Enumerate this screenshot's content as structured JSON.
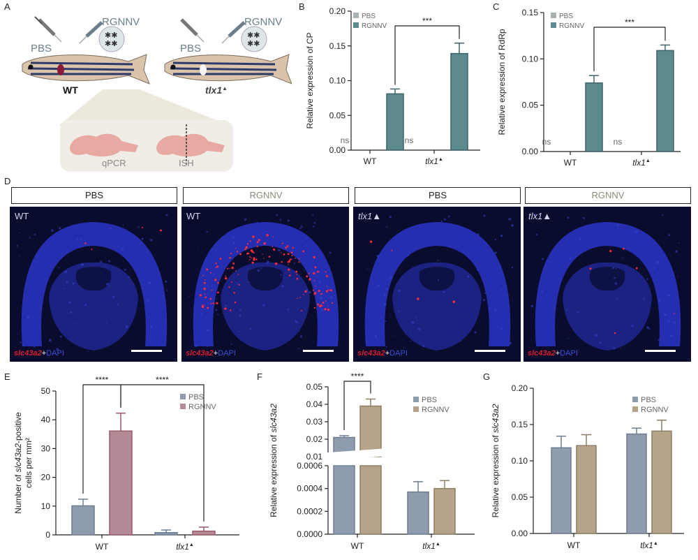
{
  "panel_labels": [
    "A",
    "B",
    "C",
    "D",
    "E",
    "F",
    "G"
  ],
  "schematic": {
    "left": {
      "pbs": "PBS",
      "rgnnv": "RGNNV",
      "genotype": "WT"
    },
    "right": {
      "pbs": "PBS",
      "rgnnv": "RGNNV",
      "genotype": "tlx1",
      "genotype_sup": "▲"
    },
    "assays": [
      "qPCR",
      "ISH"
    ]
  },
  "micrographs": {
    "titles": [
      "PBS",
      "RGNNV",
      "PBS",
      "RGNNV"
    ],
    "genotypes": [
      "WT",
      "WT",
      "tlx1▲",
      "tlx1▲"
    ],
    "stain": {
      "gene": "slc43a2",
      "plus": "+",
      "dapi": "DAPI"
    },
    "colors": {
      "nucleus": "#2a35c8",
      "background": "#0a0c2e",
      "signal": "#ff2a3a"
    }
  },
  "colors": {
    "teal": "#5d8a8e",
    "teal_light": "#a9b3b4",
    "slate": "#8d9bad",
    "mauve": "#b48a97",
    "tan": "#b5a48a",
    "grey_blue": "#8f9cae"
  },
  "chart_data": [
    {
      "panel": "B",
      "type": "bar",
      "categories": [
        "WT",
        "tlx1▲"
      ],
      "series": [
        {
          "name": "PBS",
          "values": [
            0,
            0
          ],
          "errors": [
            0,
            0
          ],
          "labels": [
            "ns",
            "ns"
          ]
        },
        {
          "name": "RGNNV",
          "values": [
            0.081,
            0.139
          ],
          "errors": [
            0.007,
            0.015
          ]
        }
      ],
      "ylabel": "Relative expression of CP",
      "ylim": [
        0,
        0.2
      ],
      "yticks": [
        "0.00",
        "0.05",
        "0.10",
        "0.15",
        "0.20"
      ],
      "significance": [
        {
          "text": "***",
          "between": [
            "WT RGNNV",
            "tlx1▲ RGNNV"
          ]
        }
      ],
      "legend": "top-left"
    },
    {
      "panel": "C",
      "type": "bar",
      "categories": [
        "WT",
        "tlx1▲"
      ],
      "series": [
        {
          "name": "PBS",
          "values": [
            0,
            0
          ],
          "errors": [
            0,
            0
          ],
          "labels": [
            "ns",
            "ns"
          ]
        },
        {
          "name": "RGNNV",
          "values": [
            0.074,
            0.109
          ],
          "errors": [
            0.008,
            0.006
          ]
        }
      ],
      "ylabel": "Relative expression of RdRp",
      "ylim": [
        0,
        0.15
      ],
      "yticks": [
        "0.00",
        "0.05",
        "0.10",
        "0.15"
      ],
      "significance": [
        {
          "text": "***",
          "between": [
            "WT RGNNV",
            "tlx1▲ RGNNV"
          ]
        }
      ],
      "legend": "top-left"
    },
    {
      "panel": "E",
      "type": "bar",
      "categories": [
        "WT",
        "tlx1▲"
      ],
      "series": [
        {
          "name": "PBS",
          "values": [
            10.1,
            0.8
          ],
          "errors": [
            2.3,
            0.9
          ]
        },
        {
          "name": "RGNNV",
          "values": [
            36.1,
            1.3
          ],
          "errors": [
            6.2,
            1.4
          ]
        }
      ],
      "ylabel": "Number of slc43a2-positive cells per mm²",
      "ylim": [
        0,
        50
      ],
      "yticks": [
        "0",
        "10",
        "20",
        "30",
        "40",
        "50"
      ],
      "significance": [
        {
          "text": "****",
          "between": [
            "WT PBS",
            "WT RGNNV"
          ]
        },
        {
          "text": "****",
          "between": [
            "WT RGNNV",
            "tlx1▲ RGNNV"
          ]
        }
      ],
      "legend": "top-right"
    },
    {
      "panel": "F",
      "type": "bar",
      "categories": [
        "WT",
        "tlx1▲"
      ],
      "series": [
        {
          "name": "PBS",
          "values": [
            0.021,
            0.00037
          ],
          "errors": [
            0.001,
            9e-05
          ]
        },
        {
          "name": "RGNNV",
          "values": [
            0.039,
            0.0004
          ],
          "errors": [
            0.004,
            7e-05
          ]
        }
      ],
      "ylabel": "Relative expression of slc43a2",
      "y_axis_break": true,
      "ylim_lower": [
        0,
        0.0006
      ],
      "ylim_upper": [
        0.01,
        0.05
      ],
      "yticks_lower": [
        "0.0000",
        "0.0002",
        "0.0004",
        "0.0006"
      ],
      "yticks_upper": [
        "0.01",
        "0.02",
        "0.03",
        "0.04",
        "0.05"
      ],
      "significance": [
        {
          "text": "****",
          "between": [
            "WT PBS",
            "WT RGNNV"
          ]
        }
      ],
      "legend": "top-right"
    },
    {
      "panel": "G",
      "type": "bar",
      "categories": [
        "WT",
        "tlx1▲"
      ],
      "series": [
        {
          "name": "PBS",
          "values": [
            0.118,
            0.137
          ],
          "errors": [
            0.016,
            0.008
          ]
        },
        {
          "name": "RGNNV",
          "values": [
            0.121,
            0.141
          ],
          "errors": [
            0.015,
            0.015
          ]
        }
      ],
      "ylabel": "Relative expression of slc43a2",
      "ylim": [
        0,
        0.2
      ],
      "yticks": [
        "0.00",
        "0.05",
        "0.10",
        "0.15",
        "0.20"
      ],
      "legend": "top-right"
    }
  ]
}
